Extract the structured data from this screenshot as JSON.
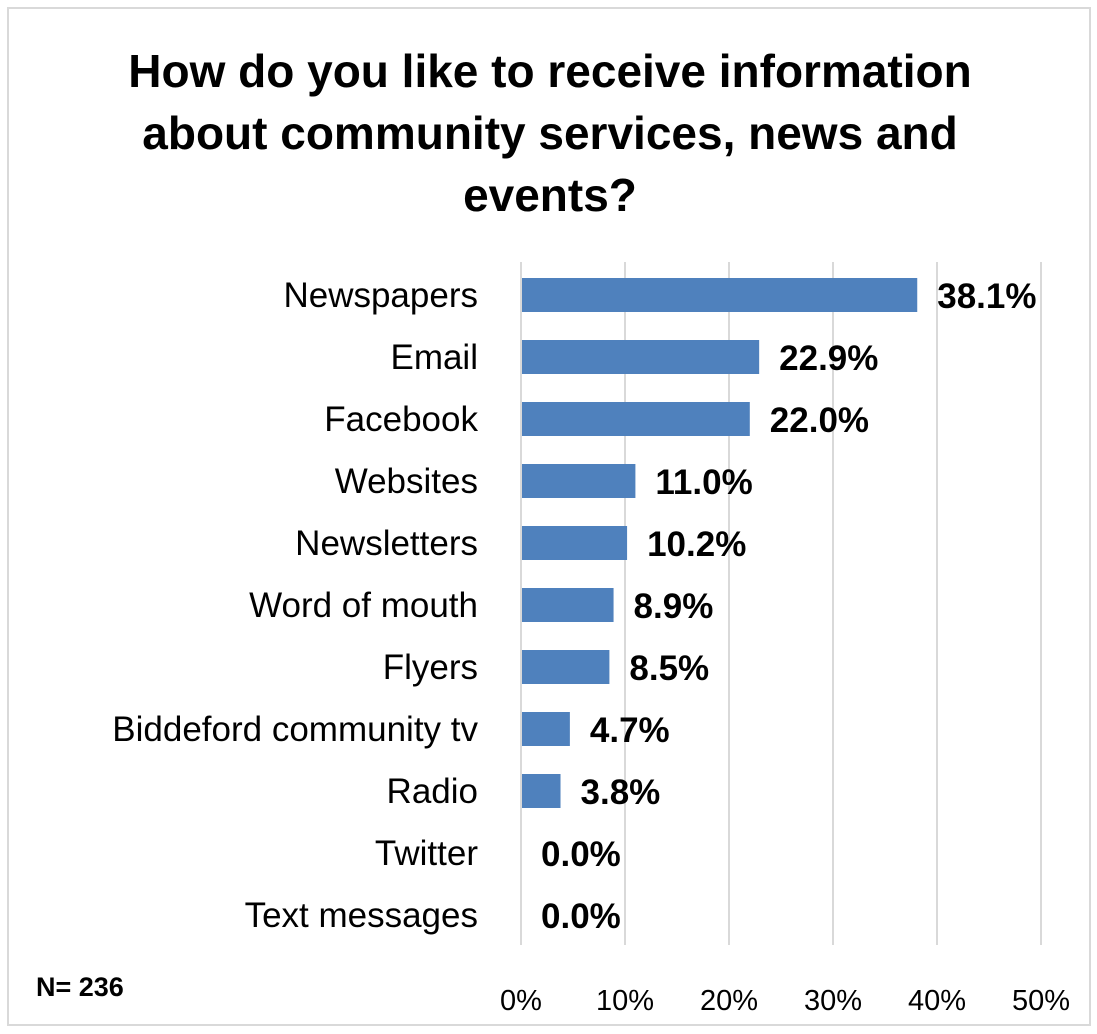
{
  "title_lines": [
    "How do you like to receive information",
    "about community services, news and",
    "events?"
  ],
  "footnote": "N= 236",
  "colors": {
    "bar": "#4f81bd",
    "grid": "#d9d9d9",
    "text": "#000000",
    "border": "#d9d9d9"
  },
  "chart_data": {
    "type": "bar",
    "orientation": "horizontal",
    "title": "How do you like to receive information about community services, news and events?",
    "categories": [
      "Newspapers",
      "Email",
      "Facebook",
      "Websites",
      "Newsletters",
      "Word of mouth",
      "Flyers",
      "Biddeford community tv",
      "Radio",
      "Twitter",
      "Text messages"
    ],
    "values": [
      38.1,
      22.9,
      22.0,
      11.0,
      10.2,
      8.9,
      8.5,
      4.7,
      3.8,
      0.0,
      0.0
    ],
    "value_labels": [
      "38.1%",
      "22.9%",
      "22.0%",
      "11.0%",
      "10.2%",
      "8.9%",
      "8.5%",
      "4.7%",
      "3.8%",
      "0.0%",
      "0.0%"
    ],
    "xlim": [
      0,
      50
    ],
    "xticks": [
      0,
      10,
      20,
      30,
      40,
      50
    ],
    "xtick_labels": [
      "0%",
      "10%",
      "20%",
      "30%",
      "40%",
      "50%"
    ],
    "grid": "vertical",
    "legend": "none"
  }
}
